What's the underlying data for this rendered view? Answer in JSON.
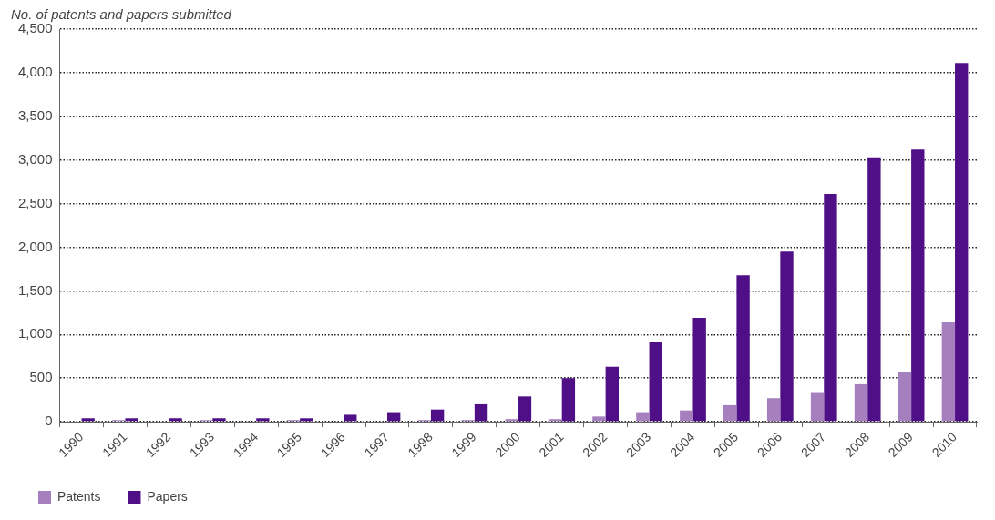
{
  "chart_data": {
    "type": "bar",
    "ylabel": "No. of patents and papers submitted",
    "categories": [
      "1990",
      "1991",
      "1992",
      "1993",
      "1994",
      "1995",
      "1996",
      "1997",
      "1998",
      "1999",
      "2000",
      "2001",
      "2002",
      "2003",
      "2004",
      "2005",
      "2006",
      "2007",
      "2008",
      "2009",
      "2010"
    ],
    "series": [
      {
        "name": "Patents",
        "color": "#a67fbf",
        "values": [
          0,
          20,
          0,
          20,
          0,
          20,
          0,
          0,
          20,
          20,
          30,
          30,
          60,
          110,
          130,
          190,
          270,
          340,
          430,
          570,
          1140
        ]
      },
      {
        "name": "Papers",
        "color": "#4f0f87",
        "values": [
          40,
          40,
          40,
          40,
          40,
          40,
          80,
          110,
          140,
          200,
          290,
          500,
          630,
          920,
          1190,
          1680,
          1950,
          2610,
          3030,
          3120,
          4110
        ]
      }
    ],
    "ylim": [
      0,
      4500
    ],
    "yticks": [
      0,
      500,
      {
        "value": 1000,
        "label": "1,000"
      },
      {
        "value": 1500,
        "label": "1,500"
      },
      {
        "value": 2000,
        "label": "2,000"
      },
      {
        "value": 2500,
        "label": "2,500"
      },
      {
        "value": 3000,
        "label": "3,000"
      },
      {
        "value": 3500,
        "label": "3,500"
      },
      {
        "value": 4000,
        "label": "4,000"
      },
      {
        "value": 4500,
        "label": "4,500"
      }
    ],
    "grid": "y",
    "legend": "bottom left"
  }
}
